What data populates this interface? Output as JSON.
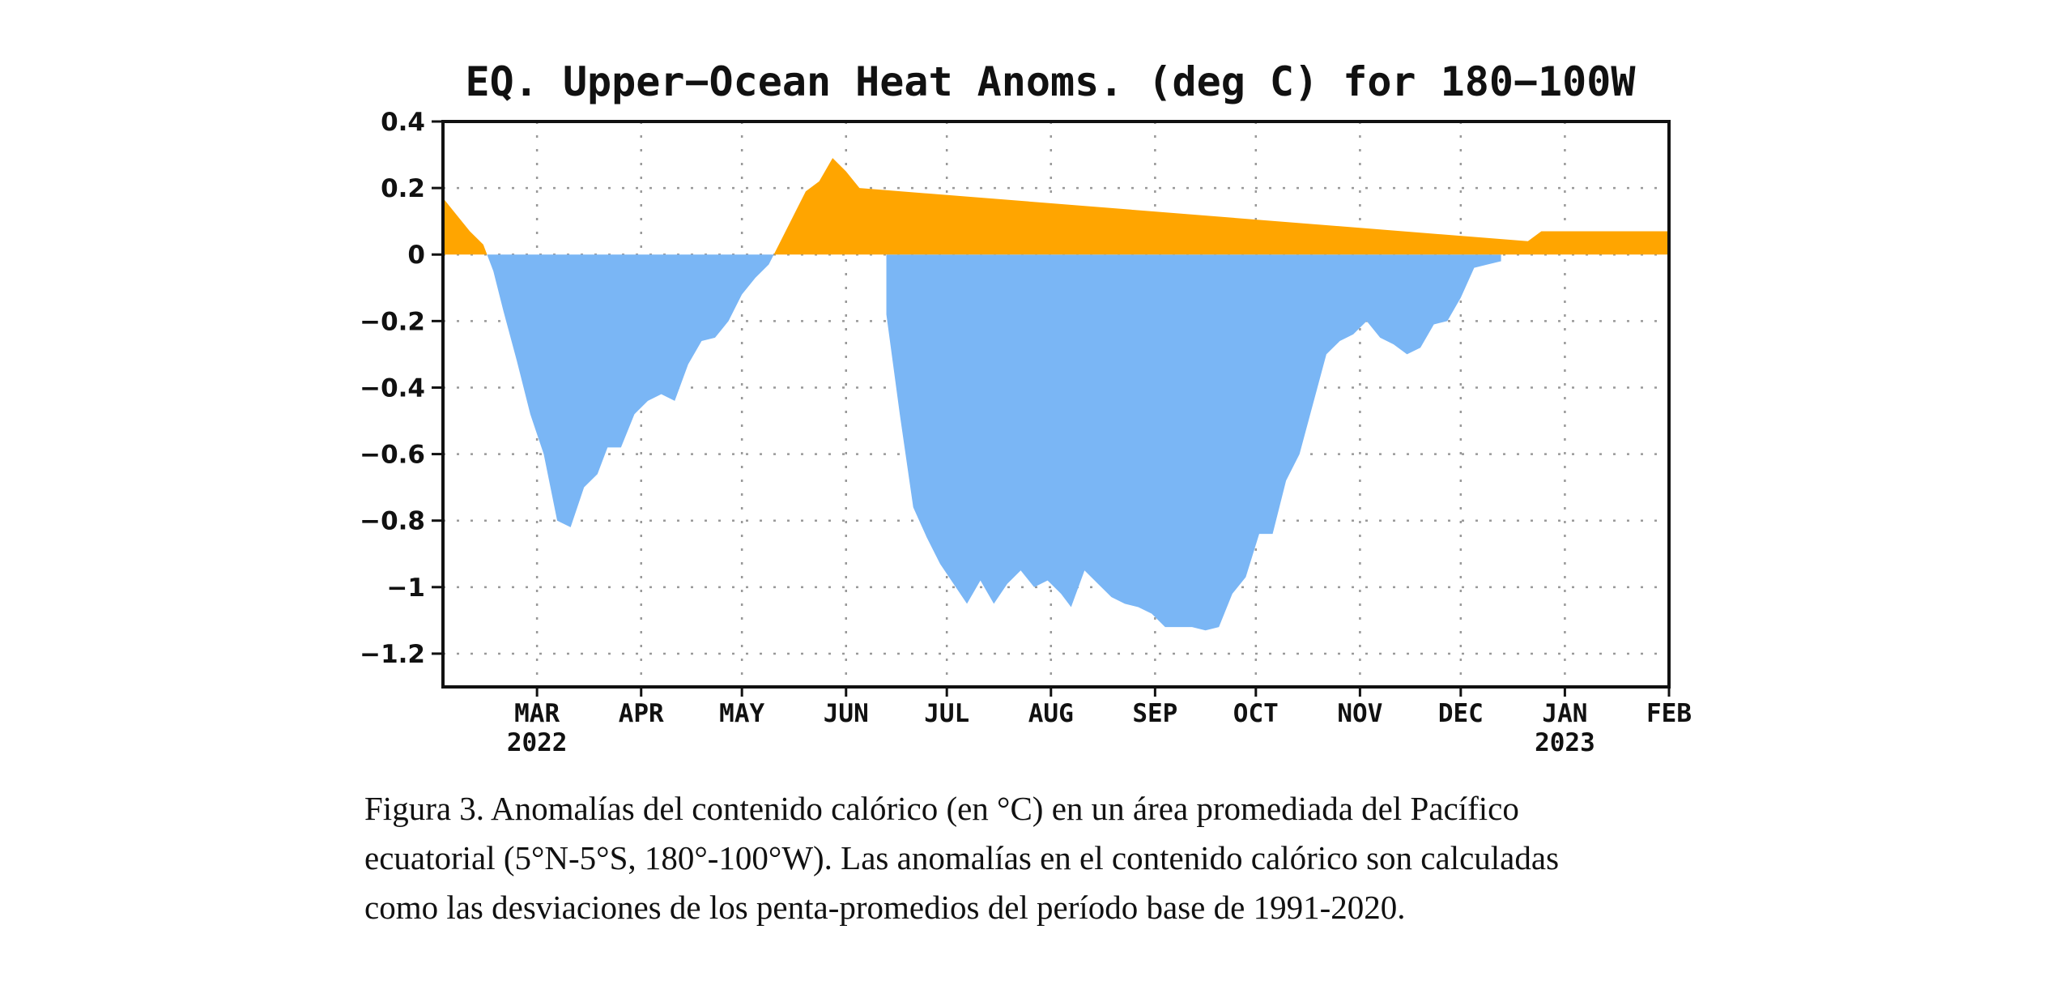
{
  "chart_data": {
    "type": "area",
    "title": "EQ. Upper−Ocean Heat Anoms. (deg C) for 180−100W",
    "xlabel": "",
    "ylabel": "",
    "ylim": [
      -1.3,
      0.4
    ],
    "xlim": [
      "2022-02-01",
      "2023-02-01"
    ],
    "grid": true,
    "y_ticks": [
      0.4,
      0.2,
      0,
      -0.2,
      -0.4,
      -0.6,
      -0.8,
      -1,
      -1.2
    ],
    "y_tick_labels": [
      "0.4",
      "0.2",
      "0",
      "−0.2",
      "−0.4",
      "−0.6",
      "−0.8",
      "−1",
      "−1.2"
    ],
    "x_ticks": [
      {
        "date": "2022-03-01",
        "label": "MAR",
        "year": "2022"
      },
      {
        "date": "2022-04-01",
        "label": "APR"
      },
      {
        "date": "2022-05-01",
        "label": "MAY"
      },
      {
        "date": "2022-06-01",
        "label": "JUN"
      },
      {
        "date": "2022-07-01",
        "label": "JUL"
      },
      {
        "date": "2022-08-01",
        "label": "AUG"
      },
      {
        "date": "2022-09-01",
        "label": "SEP"
      },
      {
        "date": "2022-10-01",
        "label": "OCT"
      },
      {
        "date": "2022-11-01",
        "label": "NOV"
      },
      {
        "date": "2022-12-01",
        "label": "DEC"
      },
      {
        "date": "2023-01-01",
        "label": "JAN",
        "year": "2023"
      },
      {
        "date": "2023-02-01",
        "label": "FEB"
      }
    ],
    "colors": {
      "positive": "#ffa500",
      "negative": "#7ab6f5"
    },
    "series": [
      {
        "x": [
          "2022-02-01",
          "2022-02-05",
          "2022-02-09",
          "2022-02-13",
          "2022-02-16",
          "2022-02-19",
          "2022-02-23",
          "2022-02-27",
          "2022-03-03",
          "2022-03-07",
          "2022-03-11",
          "2022-03-15",
          "2022-03-19",
          "2022-03-22",
          "2022-03-26",
          "2022-03-30",
          "2022-04-03",
          "2022-04-07",
          "2022-04-11",
          "2022-04-15",
          "2022-04-19",
          "2022-04-23",
          "2022-04-27",
          "2022-05-01",
          "2022-05-05",
          "2022-05-09",
          "2022-05-13",
          "2022-05-17",
          "2022-05-20",
          "2022-05-24",
          "2022-05-28",
          "2022-06-01",
          "2022-06-05",
          "2022-06-09",
          "2022-06-13",
          "2022-06-17",
          "2022-06-21",
          "2022-06-25",
          "2022-06-29",
          "2022-07-03",
          "2022-07-07",
          "2022-07-11",
          "2022-07-15",
          "2022-07-19",
          "2022-07-23",
          "2022-07-27",
          "2022-07-31",
          "2022-08-04",
          "2022-08-07",
          "2022-08-11",
          "2022-08-15",
          "2022-08-19",
          "2022-08-23",
          "2022-08-27",
          "2022-08-31",
          "2022-09-04",
          "2022-09-08",
          "2022-09-12",
          "2022-09-16",
          "2022-09-20",
          "2022-09-24",
          "2022-09-28",
          "2022-10-02",
          "2022-10-06",
          "2022-10-10",
          "2022-10-14",
          "2022-10-18",
          "2022-10-22",
          "2022-10-26",
          "2022-10-30",
          "2022-11-03",
          "2022-11-07",
          "2022-11-11",
          "2022-11-15",
          "2022-11-19",
          "2022-11-23",
          "2022-11-27",
          "2022-12-01",
          "2022-12-05",
          "2022-12-09",
          "2022-12-13",
          "2022-12-17",
          "2022-12-21",
          "2022-12-25",
          "2022-12-29",
          "2023-01-02",
          "2023-01-06",
          "2023-01-10",
          "2023-01-14",
          "2023-01-18",
          "2023-01-22",
          "2023-01-26",
          "2023-01-30",
          "2023-02-01"
        ],
        "values": [
          0.17,
          0.12,
          0.07,
          0.03,
          -0.05,
          -0.17,
          -0.32,
          -0.48,
          -0.6,
          -0.8,
          -0.82,
          -0.7,
          -0.66,
          -0.58,
          -0.58,
          -0.48,
          -0.44,
          -0.42,
          -0.44,
          -0.33,
          -0.26,
          -0.25,
          -0.2,
          -0.12,
          -0.07,
          -0.03,
          0.05,
          0.13,
          0.19,
          0.22,
          0.29,
          0.25,
          0.2,
          0.0,
          -0.18,
          -0.48,
          -0.76,
          -0.85,
          -0.93,
          -0.99,
          -1.05,
          -0.98,
          -1.05,
          -0.99,
          -0.95,
          -1.0,
          -0.98,
          -1.02,
          -1.06,
          -0.95,
          -0.99,
          -1.03,
          -1.05,
          -1.06,
          -1.08,
          -1.12,
          -1.12,
          -1.12,
          -1.13,
          -1.12,
          -1.02,
          -0.97,
          -0.84,
          -0.84,
          -0.68,
          -0.6,
          -0.45,
          -0.3,
          -0.26,
          -0.24,
          -0.2,
          -0.25,
          -0.27,
          -0.3,
          -0.28,
          -0.21,
          -0.2,
          -0.13,
          -0.04,
          -0.03,
          -0.02,
          0.0,
          0.04,
          0.07,
          0.07,
          0.07,
          0.07,
          0.07,
          0.07,
          0.07,
          0.07,
          0.07,
          0.07,
          0.07
        ]
      }
    ]
  },
  "caption": {
    "line1": "Figura 3. Anomalías del contenido calórico (en °C) en un área promediada del Pacífico",
    "line2": "ecuatorial (5°N-5°S, 180°-100°W). Las anomalías en el contenido calórico son calculadas",
    "line3": "como las desviaciones de los penta-promedios del período base de 1991-2020."
  }
}
